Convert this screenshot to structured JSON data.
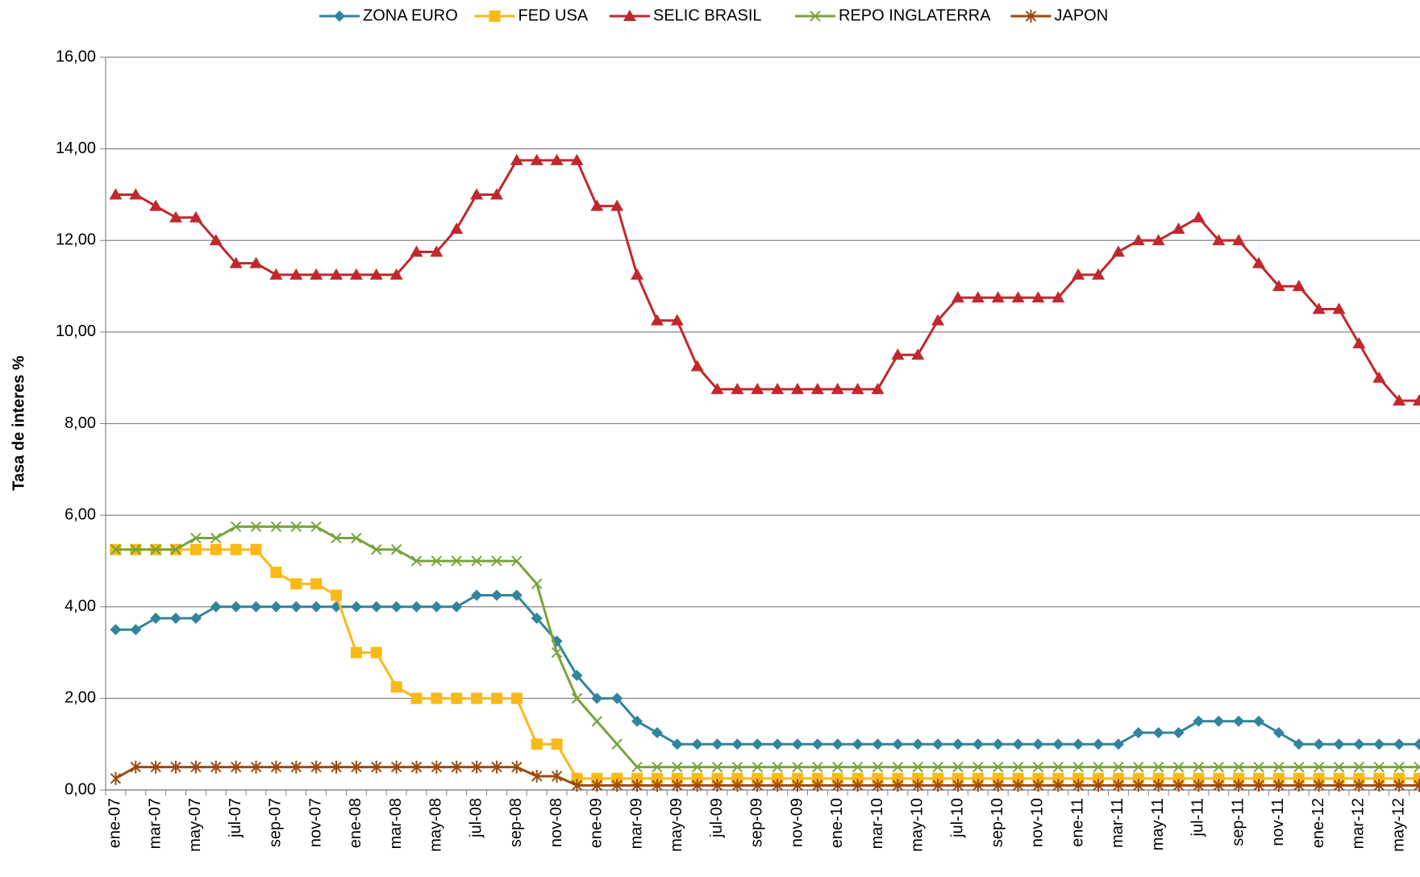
{
  "chart_data": {
    "type": "line",
    "y_label": "Tasa de interes %",
    "categories": [
      "ene-07",
      null,
      "mar-07",
      null,
      "may-07",
      null,
      "jul-07",
      null,
      "sep-07",
      null,
      "nov-07",
      null,
      "ene-08",
      null,
      "mar-08",
      null,
      "may-08",
      null,
      "jul-08",
      null,
      "sep-08",
      null,
      "nov-08",
      null,
      "ene-09",
      null,
      "mar-09",
      null,
      "may-09",
      null,
      "jul-09",
      null,
      "sep-09",
      null,
      "nov-09",
      null,
      "ene-10",
      null,
      "mar-10",
      null,
      "may-10",
      null,
      "jul-10",
      null,
      "sep-10",
      null,
      "nov-10",
      null,
      "ene-11",
      null,
      "mar-11",
      null,
      "may-11",
      null,
      "jul-11",
      null,
      "sep-11",
      null,
      "nov-11",
      null,
      "ene-12",
      null,
      "mar-12",
      null,
      "may-12",
      null
    ],
    "ylim": [
      0,
      16
    ],
    "yticks": [
      {
        "value": 0,
        "label": "0,00"
      },
      {
        "value": 2,
        "label": "2,00"
      },
      {
        "value": 4,
        "label": "4,00"
      },
      {
        "value": 6,
        "label": "6,00"
      },
      {
        "value": 8,
        "label": "8,00"
      },
      {
        "value": 10,
        "label": "10,00"
      },
      {
        "value": 12,
        "label": "12,00"
      },
      {
        "value": 14,
        "label": "14,00"
      },
      {
        "value": 16,
        "label": "16,00"
      }
    ],
    "grid": true,
    "legend": "top",
    "series": [
      {
        "name": "ZONA EURO",
        "color": "#31849b",
        "marker": "diamond",
        "values": [
          3.5,
          3.5,
          3.75,
          3.75,
          3.75,
          4,
          4,
          4,
          4,
          4,
          4,
          4,
          4,
          4,
          4,
          4,
          4,
          4,
          4.25,
          4.25,
          4.25,
          3.75,
          3.25,
          2.5,
          2,
          2,
          1.5,
          1.25,
          1,
          1,
          1,
          1,
          1,
          1,
          1,
          1,
          1,
          1,
          1,
          1,
          1,
          1,
          1,
          1,
          1,
          1,
          1,
          1,
          1,
          1,
          1,
          1.25,
          1.25,
          1.25,
          1.5,
          1.5,
          1.5,
          1.5,
          1.25,
          1,
          1,
          1,
          1,
          1,
          1,
          1
        ]
      },
      {
        "name": "FED USA",
        "color": "#fbb917",
        "marker": "square",
        "values": [
          5.25,
          5.25,
          5.25,
          5.25,
          5.25,
          5.25,
          5.25,
          5.25,
          4.75,
          4.5,
          4.5,
          4.25,
          3,
          3,
          2.25,
          2,
          2,
          2,
          2,
          2,
          2,
          1,
          1,
          0.25,
          0.25,
          0.25,
          0.25,
          0.25,
          0.25,
          0.25,
          0.25,
          0.25,
          0.25,
          0.25,
          0.25,
          0.25,
          0.25,
          0.25,
          0.25,
          0.25,
          0.25,
          0.25,
          0.25,
          0.25,
          0.25,
          0.25,
          0.25,
          0.25,
          0.25,
          0.25,
          0.25,
          0.25,
          0.25,
          0.25,
          0.25,
          0.25,
          0.25,
          0.25,
          0.25,
          0.25,
          0.25,
          0.25,
          0.25,
          0.25,
          0.25,
          0.25
        ]
      },
      {
        "name": "SELIC BRASIL",
        "color": "#c0282d",
        "marker": "triangle",
        "values": [
          13,
          13,
          12.75,
          12.5,
          12.5,
          12,
          11.5,
          11.5,
          11.25,
          11.25,
          11.25,
          11.25,
          11.25,
          11.25,
          11.25,
          11.75,
          11.75,
          12.25,
          13,
          13,
          13.75,
          13.75,
          13.75,
          13.75,
          12.75,
          12.75,
          11.25,
          10.25,
          10.25,
          9.25,
          8.75,
          8.75,
          8.75,
          8.75,
          8.75,
          8.75,
          8.75,
          8.75,
          8.75,
          9.5,
          9.5,
          10.25,
          10.75,
          10.75,
          10.75,
          10.75,
          10.75,
          10.75,
          11.25,
          11.25,
          11.75,
          12,
          12,
          12.25,
          12.5,
          12,
          12,
          11.5,
          11,
          11,
          10.5,
          10.5,
          9.75,
          9,
          8.5,
          8.5
        ]
      },
      {
        "name": "REPO INGLATERRA",
        "color": "#77a33a",
        "marker": "x",
        "values": [
          5.25,
          5.25,
          5.25,
          5.25,
          5.5,
          5.5,
          5.75,
          5.75,
          5.75,
          5.75,
          5.75,
          5.5,
          5.5,
          5.25,
          5.25,
          5,
          5,
          5,
          5,
          5,
          5,
          4.5,
          3,
          2,
          1.5,
          1,
          0.5,
          0.5,
          0.5,
          0.5,
          0.5,
          0.5,
          0.5,
          0.5,
          0.5,
          0.5,
          0.5,
          0.5,
          0.5,
          0.5,
          0.5,
          0.5,
          0.5,
          0.5,
          0.5,
          0.5,
          0.5,
          0.5,
          0.5,
          0.5,
          0.5,
          0.5,
          0.5,
          0.5,
          0.5,
          0.5,
          0.5,
          0.5,
          0.5,
          0.5,
          0.5,
          0.5,
          0.5,
          0.5,
          0.5,
          0.5
        ]
      },
      {
        "name": "JAPON",
        "color": "#9b4a0f",
        "marker": "star",
        "values": [
          0.25,
          0.5,
          0.5,
          0.5,
          0.5,
          0.5,
          0.5,
          0.5,
          0.5,
          0.5,
          0.5,
          0.5,
          0.5,
          0.5,
          0.5,
          0.5,
          0.5,
          0.5,
          0.5,
          0.5,
          0.5,
          0.3,
          0.3,
          0.1,
          0.1,
          0.1,
          0.1,
          0.1,
          0.1,
          0.1,
          0.1,
          0.1,
          0.1,
          0.1,
          0.1,
          0.1,
          0.1,
          0.1,
          0.1,
          0.1,
          0.1,
          0.1,
          0.1,
          0.1,
          0.1,
          0.1,
          0.1,
          0.1,
          0.1,
          0.1,
          0.1,
          0.1,
          0.1,
          0.1,
          0.1,
          0.1,
          0.1,
          0.1,
          0.1,
          0.1,
          0.1,
          0.1,
          0.1,
          0.1,
          0.1,
          0.1
        ]
      }
    ]
  }
}
